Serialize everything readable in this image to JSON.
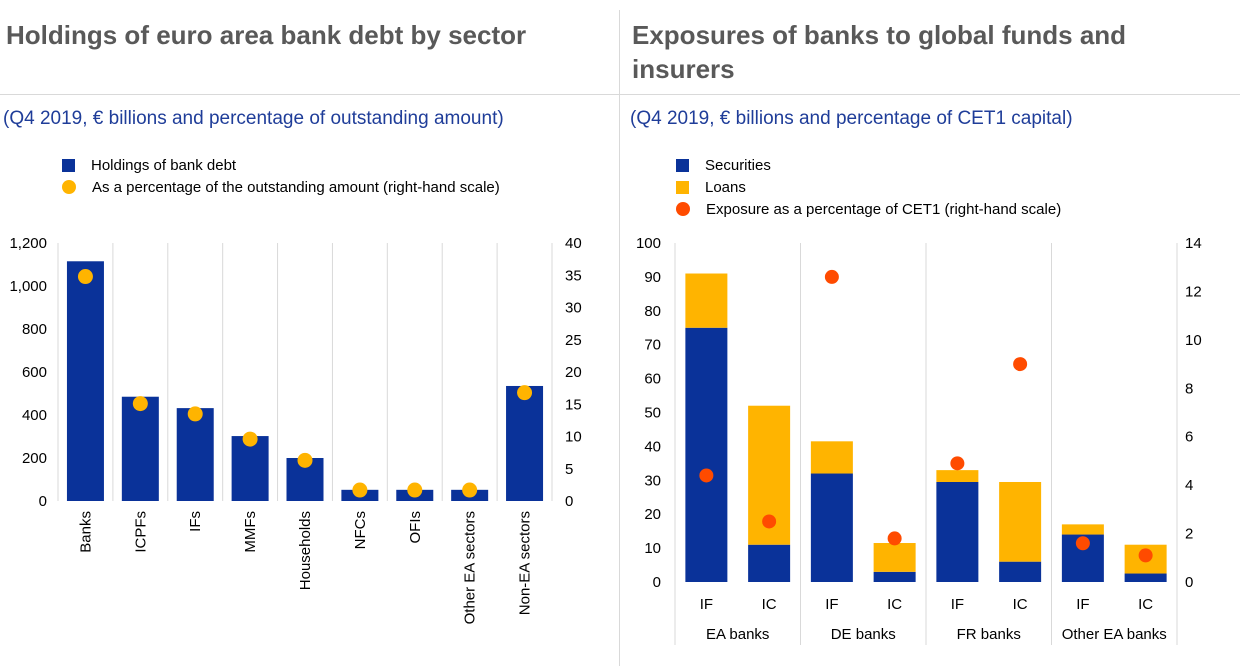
{
  "colors": {
    "navy": "#0a3299",
    "yellow": "#ffb400",
    "orange": "#ff4b00",
    "grid": "#d9d9d9"
  },
  "chart_data": [
    {
      "type": "bar",
      "title": "Holdings of euro area bank debt by sector",
      "subtitle": "(Q4 2019, € billions and percentage of outstanding amount)",
      "categories": [
        "Banks",
        "ICPFs",
        "IFs",
        "MMFs",
        "Households",
        "NFCs",
        "OFIs",
        "Other EA sectors",
        "Non-EA sectors"
      ],
      "series": [
        {
          "name": "Holdings of bank debt",
          "type": "bar",
          "axis": "left",
          "values": [
            1115,
            485,
            432,
            302,
            200,
            52,
            52,
            52,
            535
          ]
        },
        {
          "name": "As a percentage of the outstanding amount (right-hand scale)",
          "type": "scatter",
          "axis": "right",
          "values": [
            34.8,
            15.1,
            13.5,
            9.6,
            6.3,
            1.7,
            1.7,
            1.7,
            16.8
          ]
        }
      ],
      "y_left": {
        "min": 0,
        "max": 1200,
        "ticks": [
          "0",
          "200",
          "400",
          "600",
          "800",
          "1,000",
          "1,200"
        ]
      },
      "y_right": {
        "min": 0,
        "max": 40,
        "ticks": [
          "0",
          "5",
          "10",
          "15",
          "20",
          "25",
          "30",
          "35",
          "40"
        ]
      },
      "grid": "vertical",
      "legend_position": "top-left"
    },
    {
      "type": "bar",
      "stacked": true,
      "title": "Exposures of banks to global funds and insurers",
      "subtitle": "(Q4 2019, € billions and percentage of CET1 capital)",
      "groups": [
        "EA banks",
        "DE banks",
        "FR banks",
        "Other EA banks"
      ],
      "categories": [
        "IF",
        "IC",
        "IF",
        "IC",
        "IF",
        "IC",
        "IF",
        "IC"
      ],
      "series": [
        {
          "name": "Securities",
          "type": "bar",
          "axis": "left",
          "values": [
            75,
            11,
            32,
            3,
            29.5,
            6,
            14,
            2.5
          ]
        },
        {
          "name": "Loans",
          "type": "bar",
          "axis": "left",
          "values": [
            16,
            41,
            9.5,
            8.5,
            3.5,
            23.5,
            3,
            8.5
          ]
        },
        {
          "name": "Exposure as a percentage of CET1 (right-hand scale)",
          "type": "scatter",
          "axis": "right",
          "values": [
            4.4,
            2.5,
            12.6,
            1.8,
            4.9,
            9.0,
            1.6,
            1.1
          ]
        }
      ],
      "y_left": {
        "min": 0,
        "max": 100,
        "ticks": [
          "0",
          "10",
          "20",
          "30",
          "40",
          "50",
          "60",
          "70",
          "80",
          "90",
          "100"
        ]
      },
      "y_right": {
        "min": 0,
        "max": 14,
        "ticks": [
          "0",
          "2",
          "4",
          "6",
          "8",
          "10",
          "12",
          "14"
        ]
      },
      "grid": "vertical",
      "legend_position": "top-left"
    }
  ]
}
